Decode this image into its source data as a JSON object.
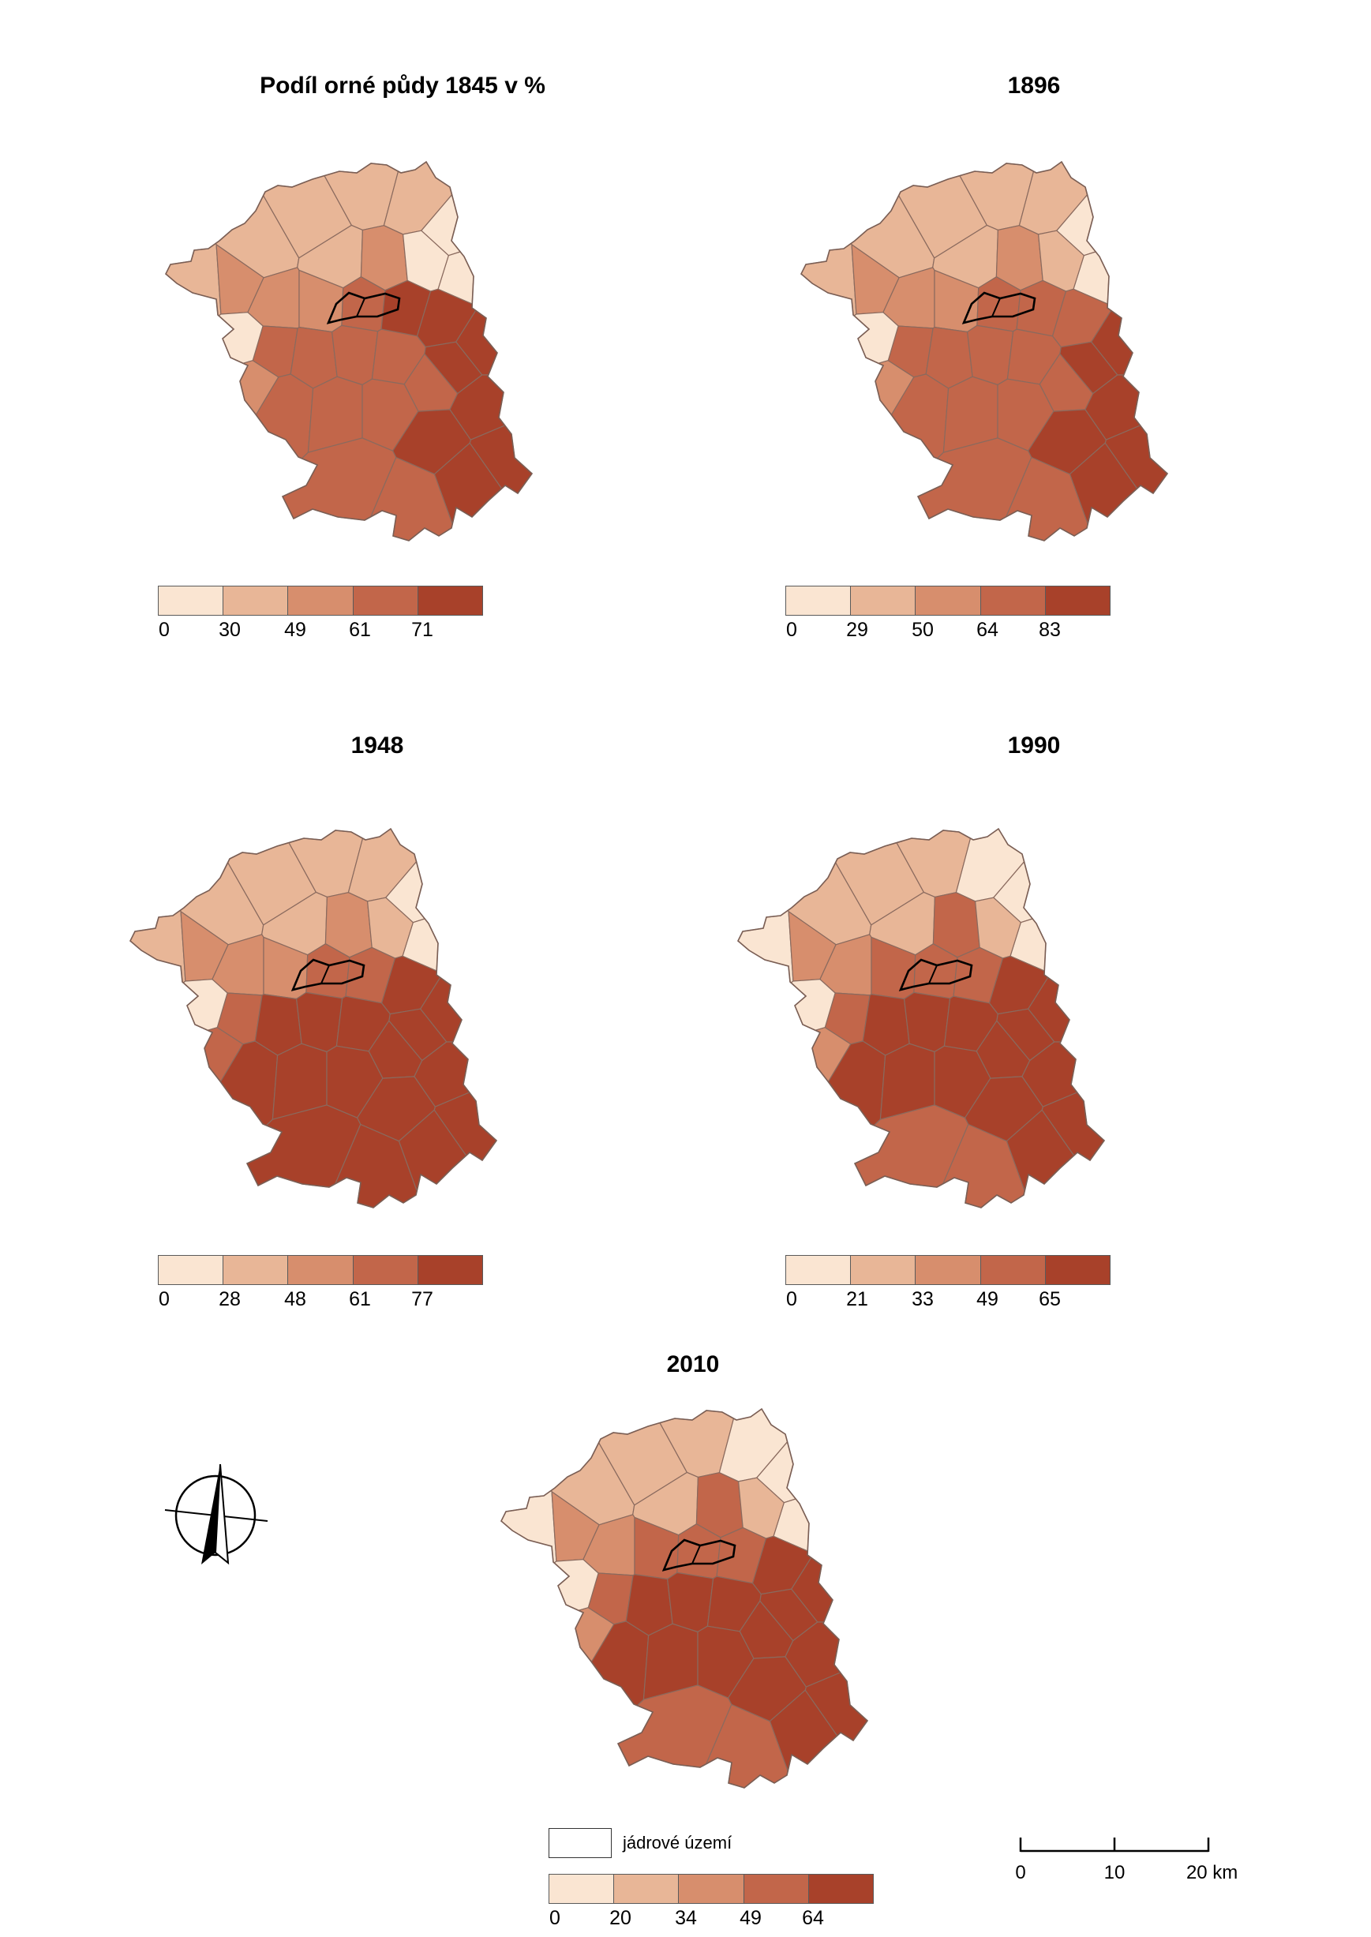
{
  "maps": [
    {
      "id": "1845",
      "title": "Podíl orné půdy 1845 v %",
      "breaks": [
        "0",
        "30",
        "49",
        "61",
        "71"
      ],
      "classes": [
        1,
        1,
        1,
        0,
        0,
        1,
        1,
        1,
        2,
        0,
        2,
        2,
        2,
        3,
        4,
        4,
        4,
        4,
        3,
        3,
        3,
        3,
        3,
        4,
        4,
        3,
        3,
        3,
        4,
        4,
        3,
        3,
        0,
        2
      ]
    },
    {
      "id": "1896",
      "title": "1896",
      "breaks": [
        "0",
        "29",
        "50",
        "64",
        "83"
      ],
      "classes": [
        1,
        1,
        1,
        0,
        0,
        1,
        1,
        1,
        2,
        1,
        2,
        2,
        2,
        3,
        3,
        3,
        4,
        4,
        3,
        3,
        3,
        3,
        3,
        4,
        4,
        3,
        3,
        3,
        4,
        4,
        3,
        3,
        0,
        2
      ]
    },
    {
      "id": "1948",
      "title": "1948",
      "breaks": [
        "0",
        "28",
        "48",
        "61",
        "77"
      ],
      "classes": [
        1,
        1,
        1,
        0,
        0,
        1,
        1,
        1,
        2,
        1,
        2,
        2,
        2,
        3,
        3,
        4,
        4,
        4,
        3,
        4,
        4,
        4,
        4,
        4,
        4,
        4,
        4,
        4,
        4,
        4,
        4,
        4,
        0,
        3
      ]
    },
    {
      "id": "1990",
      "title": "1990",
      "breaks": [
        "0",
        "21",
        "33",
        "49",
        "65"
      ],
      "classes": [
        1,
        1,
        0,
        0,
        0,
        1,
        0,
        1,
        3,
        1,
        2,
        2,
        3,
        3,
        3,
        4,
        4,
        4,
        3,
        4,
        4,
        4,
        4,
        4,
        4,
        4,
        4,
        4,
        4,
        4,
        3,
        3,
        0,
        2
      ]
    },
    {
      "id": "2010",
      "title": "2010",
      "breaks": [
        "0",
        "20",
        "34",
        "49",
        "64"
      ],
      "classes": [
        1,
        1,
        0,
        0,
        0,
        1,
        0,
        1,
        3,
        1,
        2,
        2,
        3,
        3,
        3,
        4,
        4,
        4,
        3,
        4,
        4,
        4,
        4,
        4,
        4,
        4,
        4,
        4,
        4,
        4,
        3,
        3,
        0,
        2
      ]
    }
  ],
  "palette": [
    "#fae5d2",
    "#e8b697",
    "#d78e6d",
    "#c2664a",
    "#a8412a"
  ],
  "core_legend": {
    "label": "jádrové území"
  },
  "scalebar": {
    "ticks": [
      "0",
      "10",
      "20 km"
    ]
  },
  "north_arrow": {
    "icon": "north-arrow-icon"
  }
}
